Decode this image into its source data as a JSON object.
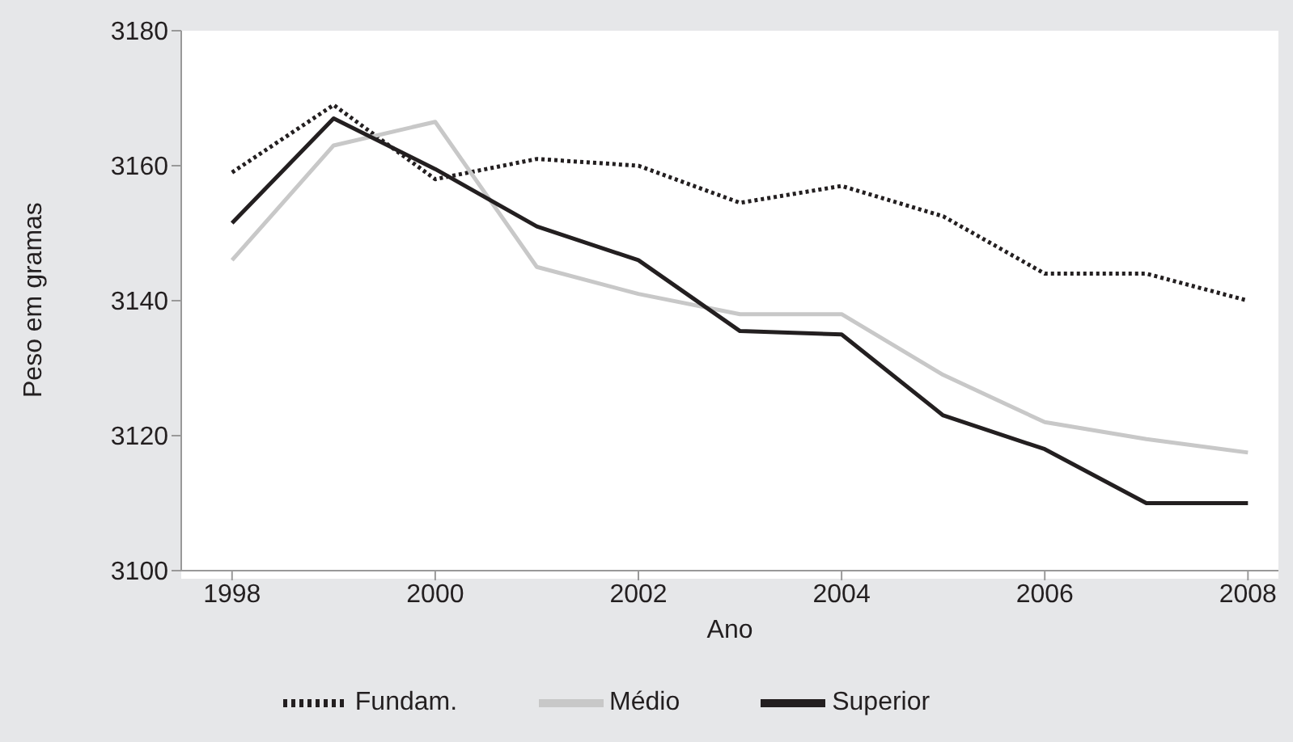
{
  "chart_data": {
    "type": "line",
    "xlabel": "Ano",
    "ylabel": "Peso em gramas",
    "x": [
      1998,
      1999,
      2000,
      2001,
      2002,
      2003,
      2004,
      2005,
      2006,
      2007,
      2008
    ],
    "series": [
      {
        "name": "Fundam.",
        "color": "#231f20",
        "line_style": "dotted",
        "values": [
          3159,
          3169,
          3158,
          3161,
          3160,
          3154.5,
          3157,
          3152.5,
          3144,
          3144,
          3140
        ]
      },
      {
        "name": "Médio",
        "color": "#c8c8c8",
        "line_style": "solid",
        "values": [
          3146,
          3163,
          3166.5,
          3145,
          3141,
          3138,
          3138,
          3129,
          3122,
          3119.5,
          3117.5
        ]
      },
      {
        "name": "Superior",
        "color": "#231f20",
        "line_style": "solid",
        "values": [
          3151.5,
          3167,
          3159.5,
          3151,
          3146,
          3135.5,
          3135,
          3123,
          3118,
          3110,
          3110
        ]
      }
    ],
    "xlim": [
      1997.5,
      2008.3
    ],
    "xticks": [
      1998,
      2000,
      2002,
      2004,
      2006,
      2008
    ],
    "ylim": [
      3100,
      3180
    ],
    "yticks": [
      3100,
      3120,
      3140,
      3160,
      3180
    ],
    "legend": "bottom",
    "marker": "none"
  }
}
